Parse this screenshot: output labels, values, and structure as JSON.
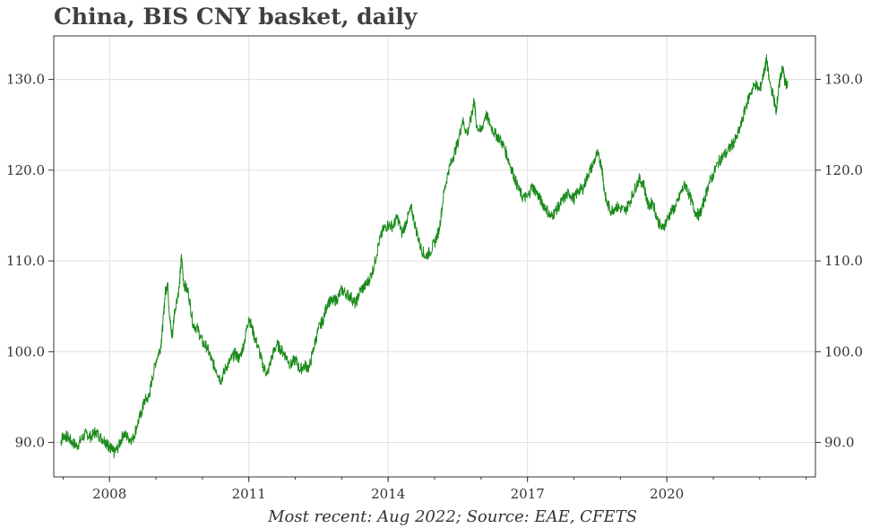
{
  "chart_data": {
    "type": "line",
    "title": "China, BIS CNY basket, daily",
    "footer": "Most recent: Aug 2022; Source: EAE, CFETS",
    "xlabel": "",
    "ylabel": "",
    "x_ticks": [
      "2008",
      "2011",
      "2014",
      "2017",
      "2020"
    ],
    "y_ticks": [
      "90.0",
      "100.0",
      "110.0",
      "120.0",
      "130.0"
    ],
    "xlim": [
      2006.8,
      2023.2
    ],
    "ylim": [
      86.2,
      134.8
    ],
    "grid": true,
    "colors": {
      "line": "#1a8a1a",
      "grid": "#e0e0e0",
      "axis": "#333333"
    },
    "series": [
      {
        "values": [
          [
            2006.95,
            90.0
          ],
          [
            2007.0,
            90.8
          ],
          [
            2007.1,
            90.6
          ],
          [
            2007.2,
            90.0
          ],
          [
            2007.3,
            89.6
          ],
          [
            2007.4,
            90.4
          ],
          [
            2007.5,
            91.0
          ],
          [
            2007.6,
            90.6
          ],
          [
            2007.7,
            91.2
          ],
          [
            2007.8,
            90.6
          ],
          [
            2007.9,
            90.2
          ],
          [
            2007.95,
            89.8
          ],
          [
            2008.0,
            89.5
          ],
          [
            2008.05,
            89.2
          ],
          [
            2008.1,
            88.8
          ],
          [
            2008.2,
            89.6
          ],
          [
            2008.3,
            91.0
          ],
          [
            2008.4,
            90.5
          ],
          [
            2008.5,
            90.3
          ],
          [
            2008.6,
            92.0
          ],
          [
            2008.7,
            93.5
          ],
          [
            2008.75,
            94.6
          ],
          [
            2008.85,
            95.0
          ],
          [
            2008.9,
            96.5
          ],
          [
            2009.0,
            99.0
          ],
          [
            2009.1,
            100.5
          ],
          [
            2009.15,
            103.0
          ],
          [
            2009.2,
            106.5
          ],
          [
            2009.25,
            107.6
          ],
          [
            2009.3,
            103.5
          ],
          [
            2009.35,
            101.5
          ],
          [
            2009.4,
            104.5
          ],
          [
            2009.5,
            107.0
          ],
          [
            2009.55,
            110.5
          ],
          [
            2009.6,
            107.5
          ],
          [
            2009.7,
            106.5
          ],
          [
            2009.8,
            103.0
          ],
          [
            2009.9,
            102.5
          ],
          [
            2010.0,
            101.0
          ],
          [
            2010.1,
            100.5
          ],
          [
            2010.2,
            99.0
          ],
          [
            2010.3,
            98.0
          ],
          [
            2010.4,
            96.8
          ],
          [
            2010.5,
            98.2
          ],
          [
            2010.6,
            99.0
          ],
          [
            2010.7,
            99.8
          ],
          [
            2010.8,
            99.2
          ],
          [
            2010.9,
            101.0
          ],
          [
            2011.0,
            103.8
          ],
          [
            2011.1,
            102.0
          ],
          [
            2011.2,
            100.5
          ],
          [
            2011.3,
            98.5
          ],
          [
            2011.4,
            97.5
          ],
          [
            2011.5,
            99.5
          ],
          [
            2011.6,
            100.8
          ],
          [
            2011.7,
            100.2
          ],
          [
            2011.8,
            99.5
          ],
          [
            2011.9,
            98.5
          ],
          [
            2012.0,
            99.2
          ],
          [
            2012.1,
            98.0
          ],
          [
            2012.2,
            98.5
          ],
          [
            2012.3,
            98.2
          ],
          [
            2012.4,
            100.5
          ],
          [
            2012.5,
            102.5
          ],
          [
            2012.6,
            103.5
          ],
          [
            2012.7,
            105.5
          ],
          [
            2012.8,
            105.5
          ],
          [
            2012.9,
            105.8
          ],
          [
            2013.0,
            106.8
          ],
          [
            2013.1,
            106.4
          ],
          [
            2013.2,
            106.0
          ],
          [
            2013.3,
            105.2
          ],
          [
            2013.4,
            106.8
          ],
          [
            2013.5,
            107.2
          ],
          [
            2013.6,
            108.0
          ],
          [
            2013.7,
            109.5
          ],
          [
            2013.8,
            112.0
          ],
          [
            2013.9,
            113.5
          ],
          [
            2014.0,
            114.0
          ],
          [
            2014.1,
            113.8
          ],
          [
            2014.2,
            114.8
          ],
          [
            2014.3,
            113.0
          ],
          [
            2014.4,
            114.5
          ],
          [
            2014.5,
            115.8
          ],
          [
            2014.6,
            113.5
          ],
          [
            2014.7,
            111.5
          ],
          [
            2014.8,
            110.5
          ],
          [
            2014.9,
            111.0
          ],
          [
            2015.0,
            112.0
          ],
          [
            2015.1,
            113.5
          ],
          [
            2015.2,
            117.5
          ],
          [
            2015.3,
            120.0
          ],
          [
            2015.4,
            121.5
          ],
          [
            2015.5,
            123.0
          ],
          [
            2015.6,
            125.5
          ],
          [
            2015.7,
            124.0
          ],
          [
            2015.8,
            126.0
          ],
          [
            2015.85,
            127.8
          ],
          [
            2015.9,
            125.0
          ],
          [
            2016.0,
            124.2
          ],
          [
            2016.1,
            126.2
          ],
          [
            2016.2,
            125.0
          ],
          [
            2016.3,
            124.0
          ],
          [
            2016.4,
            123.5
          ],
          [
            2016.5,
            122.5
          ],
          [
            2016.6,
            121.0
          ],
          [
            2016.7,
            119.5
          ],
          [
            2016.8,
            118.0
          ],
          [
            2016.9,
            117.0
          ],
          [
            2017.0,
            117.0
          ],
          [
            2017.1,
            118.2
          ],
          [
            2017.2,
            117.5
          ],
          [
            2017.3,
            116.5
          ],
          [
            2017.4,
            115.8
          ],
          [
            2017.5,
            114.8
          ],
          [
            2017.6,
            115.5
          ],
          [
            2017.7,
            116.2
          ],
          [
            2017.8,
            117.0
          ],
          [
            2017.9,
            117.5
          ],
          [
            2018.0,
            116.8
          ],
          [
            2018.1,
            117.8
          ],
          [
            2018.2,
            118.0
          ],
          [
            2018.3,
            119.5
          ],
          [
            2018.4,
            120.5
          ],
          [
            2018.5,
            121.8
          ],
          [
            2018.6,
            120.5
          ],
          [
            2018.65,
            118.0
          ],
          [
            2018.7,
            116.5
          ],
          [
            2018.8,
            115.5
          ],
          [
            2018.9,
            116.0
          ],
          [
            2019.0,
            115.8
          ],
          [
            2019.1,
            115.5
          ],
          [
            2019.2,
            116.5
          ],
          [
            2019.3,
            117.8
          ],
          [
            2019.4,
            119.0
          ],
          [
            2019.5,
            118.5
          ],
          [
            2019.6,
            116.0
          ],
          [
            2019.7,
            116.5
          ],
          [
            2019.8,
            114.5
          ],
          [
            2019.9,
            113.5
          ],
          [
            2020.0,
            114.5
          ],
          [
            2020.1,
            115.5
          ],
          [
            2020.2,
            116.0
          ],
          [
            2020.3,
            117.5
          ],
          [
            2020.4,
            118.5
          ],
          [
            2020.5,
            117.0
          ],
          [
            2020.6,
            115.5
          ],
          [
            2020.7,
            115.0
          ],
          [
            2020.8,
            116.5
          ],
          [
            2020.9,
            118.5
          ],
          [
            2021.0,
            119.5
          ],
          [
            2021.1,
            120.8
          ],
          [
            2021.2,
            121.5
          ],
          [
            2021.3,
            122.0
          ],
          [
            2021.4,
            122.8
          ],
          [
            2021.5,
            123.5
          ],
          [
            2021.6,
            125.0
          ],
          [
            2021.7,
            127.0
          ],
          [
            2021.8,
            128.5
          ],
          [
            2021.9,
            129.5
          ],
          [
            2022.0,
            128.8
          ],
          [
            2022.1,
            131.0
          ],
          [
            2022.15,
            132.2
          ],
          [
            2022.2,
            130.0
          ],
          [
            2022.3,
            128.0
          ],
          [
            2022.35,
            126.5
          ],
          [
            2022.4,
            128.5
          ],
          [
            2022.45,
            130.5
          ],
          [
            2022.5,
            131.2
          ],
          [
            2022.55,
            129.5
          ],
          [
            2022.6,
            129.3
          ]
        ]
      }
    ]
  }
}
